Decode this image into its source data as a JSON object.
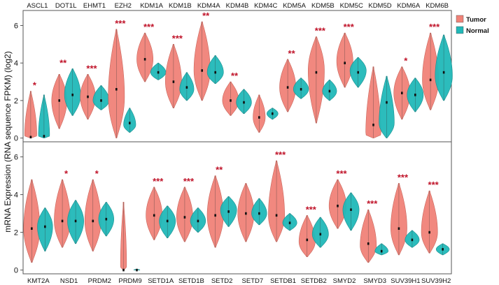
{
  "chart_data": {
    "type": "violin",
    "ylabel": "mRNA Expression (RNA sequence FPKM) (log2)",
    "legend": {
      "position": "top-right",
      "entries": [
        {
          "name": "Tumor",
          "color": "#f08278"
        },
        {
          "name": "Normal",
          "color": "#21b8b8"
        }
      ]
    },
    "panels": [
      {
        "ylim": [
          -0.2,
          6.8
        ],
        "yticks": [
          "0",
          "2",
          "4",
          "6"
        ],
        "label_position": "top",
        "groups": [
          {
            "name": "ASCL1",
            "sig": "*",
            "tumor": {
              "median": 0.05,
              "min": 0.0,
              "max": 2.5,
              "mode": 0.05,
              "w": 0.6
            },
            "normal": {
              "median": 0.1,
              "min": 0.0,
              "max": 2.3,
              "mode": 0.05,
              "w": 0.55
            }
          },
          {
            "name": "DOT1L",
            "sig": "**",
            "tumor": {
              "median": 2.0,
              "min": 0.5,
              "max": 3.4,
              "mode": 2.0,
              "w": 0.75
            },
            "normal": {
              "median": 2.3,
              "min": 1.2,
              "max": 3.7,
              "mode": 2.3,
              "w": 0.8
            }
          },
          {
            "name": "EHMT1",
            "sig": "***",
            "tumor": {
              "median": 2.2,
              "min": 1.0,
              "max": 3.4,
              "mode": 2.2,
              "w": 0.75
            },
            "normal": {
              "median": 2.0,
              "min": 1.5,
              "max": 2.8,
              "mode": 2.0,
              "w": 0.8
            }
          },
          {
            "name": "EZH2",
            "sig": "***",
            "tumor": {
              "median": 2.6,
              "min": 0.0,
              "max": 5.8,
              "mode": 2.2,
              "w": 0.8
            },
            "normal": {
              "median": 0.8,
              "min": 0.3,
              "max": 1.6,
              "mode": 0.7,
              "w": 0.6
            }
          },
          {
            "name": "KDM1A",
            "sig": "***",
            "tumor": {
              "median": 4.2,
              "min": 3.0,
              "max": 5.6,
              "mode": 4.2,
              "w": 0.8
            },
            "normal": {
              "median": 3.5,
              "min": 3.1,
              "max": 4.0,
              "mode": 3.5,
              "w": 0.75
            }
          },
          {
            "name": "KDM1B",
            "sig": "***",
            "tumor": {
              "median": 3.0,
              "min": 1.6,
              "max": 5.0,
              "mode": 3.0,
              "w": 0.8
            },
            "normal": {
              "median": 2.7,
              "min": 2.0,
              "max": 3.5,
              "mode": 2.6,
              "w": 0.7
            }
          },
          {
            "name": "KDM4A",
            "sig": "**",
            "tumor": {
              "median": 3.6,
              "min": 2.0,
              "max": 6.2,
              "mode": 3.6,
              "w": 0.8
            },
            "normal": {
              "median": 3.5,
              "min": 2.9,
              "max": 4.4,
              "mode": 3.5,
              "w": 0.8
            }
          },
          {
            "name": "KDM4B",
            "sig": "**",
            "tumor": {
              "median": 2.0,
              "min": 1.2,
              "max": 3.0,
              "mode": 2.0,
              "w": 0.8
            },
            "normal": {
              "median": 1.9,
              "min": 1.3,
              "max": 2.6,
              "mode": 1.9,
              "w": 0.75
            }
          },
          {
            "name": "KDM4C",
            "sig": "",
            "tumor": {
              "median": 1.1,
              "min": 0.3,
              "max": 2.3,
              "mode": 1.1,
              "w": 0.6
            },
            "normal": {
              "median": 1.3,
              "min": 1.0,
              "max": 1.6,
              "mode": 1.3,
              "w": 0.55
            }
          },
          {
            "name": "KDM5A",
            "sig": "**",
            "tumor": {
              "median": 2.7,
              "min": 1.4,
              "max": 4.2,
              "mode": 2.7,
              "w": 0.8
            },
            "normal": {
              "median": 2.6,
              "min": 2.1,
              "max": 3.2,
              "mode": 2.6,
              "w": 0.75
            }
          },
          {
            "name": "KDM5B",
            "sig": "***",
            "tumor": {
              "median": 3.5,
              "min": 0.8,
              "max": 5.4,
              "mode": 3.6,
              "w": 0.8
            },
            "normal": {
              "median": 2.5,
              "min": 2.0,
              "max": 3.1,
              "mode": 2.5,
              "w": 0.7
            }
          },
          {
            "name": "KDM5C",
            "sig": "***",
            "tumor": {
              "median": 4.0,
              "min": 2.7,
              "max": 5.6,
              "mode": 4.1,
              "w": 0.8
            },
            "normal": {
              "median": 3.5,
              "min": 2.7,
              "max": 4.3,
              "mode": 3.6,
              "w": 0.8
            }
          },
          {
            "name": "KDM5D",
            "sig": "",
            "tumor": {
              "median": 0.7,
              "min": 0.0,
              "max": 3.8,
              "mode": 0.2,
              "w": 0.75
            },
            "normal": {
              "median": 1.9,
              "min": 0.0,
              "max": 3.3,
              "mode": 0.8,
              "w": 0.75
            }
          },
          {
            "name": "KDM6A",
            "sig": "*",
            "tumor": {
              "median": 2.4,
              "min": 1.0,
              "max": 3.8,
              "mode": 2.4,
              "w": 0.8
            },
            "normal": {
              "median": 2.3,
              "min": 1.4,
              "max": 3.2,
              "mode": 2.3,
              "w": 0.8
            }
          },
          {
            "name": "KDM6B",
            "sig": "***",
            "tumor": {
              "median": 3.1,
              "min": 1.5,
              "max": 5.6,
              "mode": 3.1,
              "w": 0.8
            },
            "normal": {
              "median": 3.5,
              "min": 2.0,
              "max": 5.5,
              "mode": 3.3,
              "w": 0.85
            }
          }
        ]
      },
      {
        "ylim": [
          -0.2,
          6.8
        ],
        "yticks": [
          "0",
          "2",
          "4",
          "6"
        ],
        "label_position": "bottom",
        "groups": [
          {
            "name": "KMT2A",
            "sig": "",
            "tumor": {
              "median": 2.2,
              "min": 0.4,
              "max": 4.8,
              "mode": 2.2,
              "w": 0.8
            },
            "normal": {
              "median": 2.3,
              "min": 1.0,
              "max": 3.3,
              "mode": 2.3,
              "w": 0.75
            }
          },
          {
            "name": "NSD1",
            "sig": "*",
            "tumor": {
              "median": 2.6,
              "min": 1.2,
              "max": 4.8,
              "mode": 2.6,
              "w": 0.8
            },
            "normal": {
              "median": 2.6,
              "min": 1.4,
              "max": 3.7,
              "mode": 2.6,
              "w": 0.8
            }
          },
          {
            "name": "PRDM2",
            "sig": "*",
            "tumor": {
              "median": 2.6,
              "min": 1.0,
              "max": 4.8,
              "mode": 2.6,
              "w": 0.8
            },
            "normal": {
              "median": 2.7,
              "min": 1.8,
              "max": 3.6,
              "mode": 2.7,
              "w": 0.75
            }
          },
          {
            "name": "PRDM9",
            "sig": "",
            "tumor": {
              "median": 0.0,
              "min": 0.0,
              "max": 3.6,
              "mode": 0.0,
              "w": 0.3
            },
            "normal": {
              "median": 0.0,
              "min": 0.0,
              "max": 0.05,
              "mode": 0.0,
              "w": 0.3
            }
          },
          {
            "name": "SETD1A",
            "sig": "***",
            "tumor": {
              "median": 2.9,
              "min": 1.6,
              "max": 4.4,
              "mode": 2.9,
              "w": 0.8
            },
            "normal": {
              "median": 2.6,
              "min": 1.7,
              "max": 3.4,
              "mode": 2.6,
              "w": 0.8
            }
          },
          {
            "name": "SETD1B",
            "sig": "***",
            "tumor": {
              "median": 2.8,
              "min": 1.5,
              "max": 4.4,
              "mode": 2.8,
              "w": 0.8
            },
            "normal": {
              "median": 2.6,
              "min": 2.0,
              "max": 3.3,
              "mode": 2.6,
              "w": 0.75
            }
          },
          {
            "name": "SETD2",
            "sig": "**",
            "tumor": {
              "median": 2.9,
              "min": 1.2,
              "max": 5.0,
              "mode": 2.9,
              "w": 0.8
            },
            "normal": {
              "median": 3.1,
              "min": 2.3,
              "max": 3.9,
              "mode": 3.2,
              "w": 0.8
            }
          },
          {
            "name": "SETD7",
            "sig": "",
            "tumor": {
              "median": 3.0,
              "min": 1.5,
              "max": 4.6,
              "mode": 3.0,
              "w": 0.8
            },
            "normal": {
              "median": 3.0,
              "min": 2.4,
              "max": 3.8,
              "mode": 3.0,
              "w": 0.75
            }
          },
          {
            "name": "SETDB1",
            "sig": "***",
            "tumor": {
              "median": 2.9,
              "min": 1.5,
              "max": 5.8,
              "mode": 2.9,
              "w": 0.8
            },
            "normal": {
              "median": 2.5,
              "min": 2.1,
              "max": 3.0,
              "mode": 2.5,
              "w": 0.7
            }
          },
          {
            "name": "SETDB2",
            "sig": "***",
            "tumor": {
              "median": 1.6,
              "min": 0.7,
              "max": 2.9,
              "mode": 1.5,
              "w": 0.8
            },
            "normal": {
              "median": 1.9,
              "min": 1.2,
              "max": 2.8,
              "mode": 1.9,
              "w": 0.8
            }
          },
          {
            "name": "SMYD2",
            "sig": "***",
            "tumor": {
              "median": 3.4,
              "min": 2.2,
              "max": 4.8,
              "mode": 3.4,
              "w": 0.85
            },
            "normal": {
              "median": 3.2,
              "min": 2.1,
              "max": 4.1,
              "mode": 3.2,
              "w": 0.8
            }
          },
          {
            "name": "SMYD3",
            "sig": "***",
            "tumor": {
              "median": 1.4,
              "min": 0.4,
              "max": 3.2,
              "mode": 1.3,
              "w": 0.8
            },
            "normal": {
              "median": 1.0,
              "min": 0.8,
              "max": 1.4,
              "mode": 1.0,
              "w": 0.65
            }
          },
          {
            "name": "SUV39H1",
            "sig": "***",
            "tumor": {
              "median": 2.2,
              "min": 0.8,
              "max": 4.6,
              "mode": 2.2,
              "w": 0.8
            },
            "normal": {
              "median": 1.6,
              "min": 1.2,
              "max": 2.1,
              "mode": 1.6,
              "w": 0.7
            }
          },
          {
            "name": "SUV39H2",
            "sig": "***",
            "tumor": {
              "median": 2.0,
              "min": 0.9,
              "max": 4.2,
              "mode": 2.0,
              "w": 0.8
            },
            "normal": {
              "median": 1.1,
              "min": 0.8,
              "max": 1.4,
              "mode": 1.1,
              "w": 0.65
            }
          }
        ]
      }
    ]
  }
}
